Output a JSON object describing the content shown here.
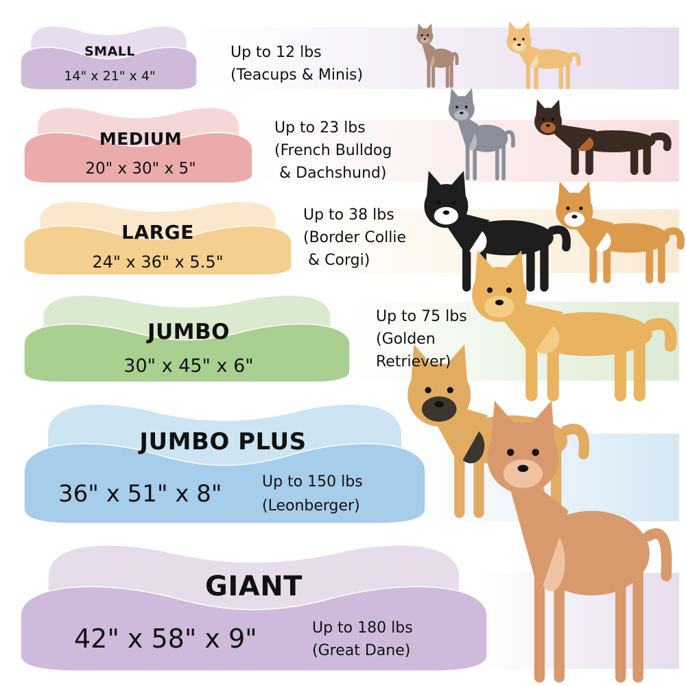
{
  "sizes": [
    {
      "title": "SMALL",
      "dims": "14\" x 21\" x 4\"",
      "weight": "Up to 12 lbs",
      "breeds": [
        "(Teacups & Minis)"
      ],
      "back": "#e8dded",
      "front": "#cfbbd9",
      "band": "#e6dcee"
    },
    {
      "title": "MEDIUM",
      "dims": "20\" x 30\" x 5\"",
      "weight": "Up to 23 lbs",
      "breeds": [
        "(French Bulldog",
        " & Dachshund)"
      ],
      "back": "#f6d7d7",
      "front": "#ebabab",
      "band": "#f8dede"
    },
    {
      "title": "LARGE",
      "dims": "24\" x 36\" x 5.5\"",
      "weight": "Up to 38 lbs",
      "breeds": [
        "(Border Collie",
        " & Corgi)"
      ],
      "back": "#fbe7cb",
      "front": "#f5cf8f",
      "band": "#fbead2"
    },
    {
      "title": "JUMBO",
      "dims": "30\" x 45\" x 6\"",
      "weight": "Up to 75 lbs",
      "breeds": [
        "(Golden",
        "Retriever)"
      ],
      "back": "#d9eacf",
      "front": "#a9cf91",
      "band": "#dcebd3"
    },
    {
      "title": "JUMBO PLUS",
      "dims": "36\" x 51\" x 8\"",
      "weight": "Up to 150 lbs",
      "breeds": [
        "(Leonberger)"
      ],
      "back": "#cde4f2",
      "front": "#a6cdea",
      "band": "#d5e8f4"
    },
    {
      "title": "GIANT",
      "dims": "42\" x 58\" x 9\"",
      "weight": "Up to 180 lbs",
      "breeds": [
        "(Great Dane)"
      ],
      "back": "#e7dcea",
      "front": "#cebbdb",
      "band": "#e6dcec"
    }
  ],
  "dogs": [
    "chihuahua-icon",
    "pomeranian-icon",
    "french-bulldog-icon",
    "dachshund-icon",
    "border-collie-icon",
    "corgi-icon",
    "golden-retriever-icon",
    "leonberger-icon",
    "great-dane-icon"
  ]
}
